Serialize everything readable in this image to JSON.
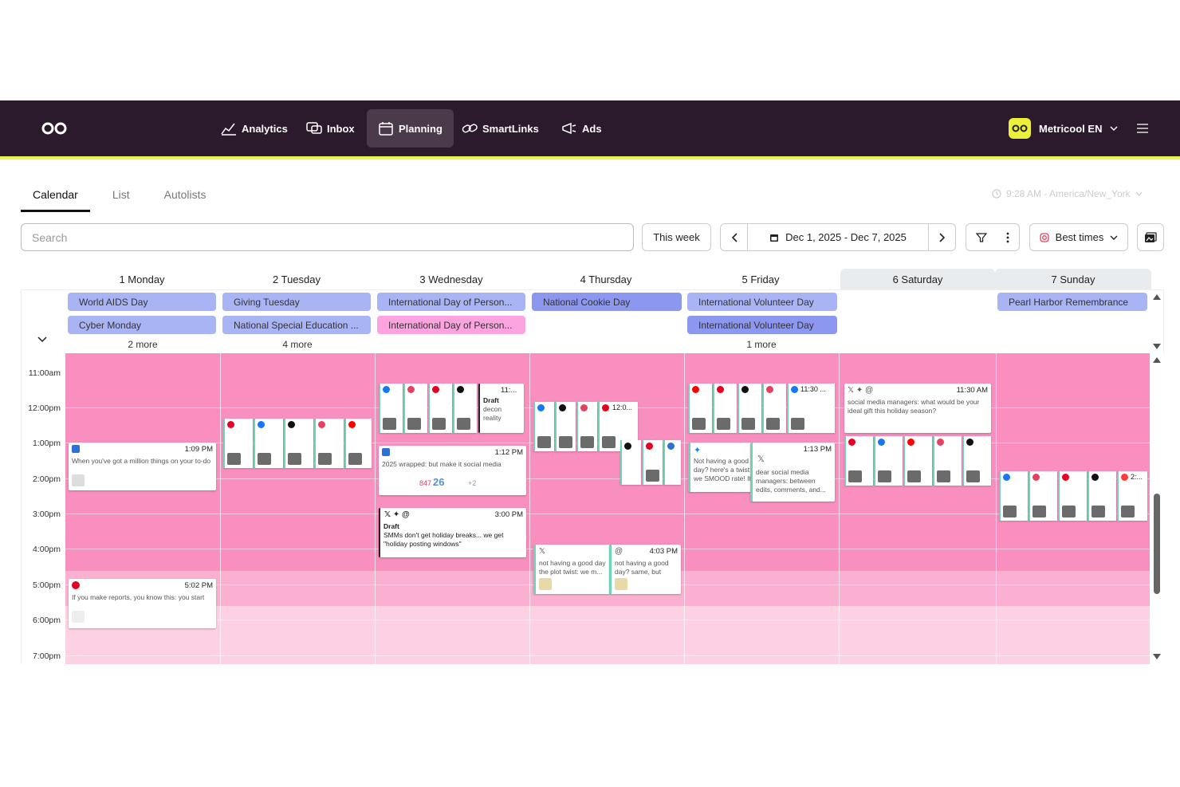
{
  "nav": {
    "items": [
      {
        "label": "Analytics"
      },
      {
        "label": "Inbox"
      },
      {
        "label": "Planning"
      },
      {
        "label": "SmartLinks"
      },
      {
        "label": "Ads"
      }
    ],
    "account": "Metricool EN"
  },
  "tabs": [
    "Calendar",
    "List",
    "Autolists"
  ],
  "timezone": "9:28 AM - America/New_York",
  "search": {
    "placeholder": "Search"
  },
  "toolbar": {
    "this_week": "This week",
    "date_range": "Dec 1, 2025 - Dec 7, 2025",
    "best_times": "Best times"
  },
  "days": [
    {
      "label": "1 Monday",
      "events": [
        "World AIDS Day",
        "Cyber Monday"
      ],
      "more": "2 more"
    },
    {
      "label": "2 Tuesday",
      "events": [
        "Giving Tuesday",
        "National Special Education ..."
      ],
      "more": "4 more"
    },
    {
      "label": "3 Wednesday",
      "events": [
        "International Day of Person...",
        "International Day of Person..."
      ],
      "more": ""
    },
    {
      "label": "4 Thursday",
      "events": [
        "National Cookie Day"
      ],
      "more": ""
    },
    {
      "label": "5 Friday",
      "events": [
        "International Volunteer Day",
        "International Volunteer Day"
      ],
      "more": "1 more"
    },
    {
      "label": "6 Saturday",
      "events": [],
      "more": ""
    },
    {
      "label": "7 Sunday",
      "events": [
        "Pearl Harbor Remembrance"
      ],
      "more": ""
    }
  ],
  "hours": [
    "11:00am",
    "12:00pm",
    "1:00pm",
    "2:00pm",
    "3:00pm",
    "4:00pm",
    "5:00pm",
    "6:00pm",
    "7:00pm"
  ],
  "posts": {
    "mon1": {
      "time": "1:09 PM",
      "text": "When you've got a million things on your to-do list, ALT text is usually the first..."
    },
    "mon2": {
      "time": "5:02 PM",
      "text": "If you make reports, you know this: you start \"quickly\"... and end up with 27 tabs"
    },
    "wed1": {
      "time": "1:12 PM",
      "text": "2025 wrapped: but make it social media marketer edition",
      "stat1": "847",
      "stat2": "26",
      "stat3": "+2"
    },
    "wed2": {
      "time": "3:00 PM",
      "status": "Draft",
      "text": "SMMs don't get holiday breaks... we get \"holiday posting windows\""
    },
    "thu1": {
      "time": "4:03 PM",
      "text": "not having a good day the plot twist: we m..."
    },
    "thu2": {
      "text": "not having a good day? same, but"
    },
    "fri1": {
      "time": "1:13 PM",
      "text": "Not having a good day? here's a twist: we SMOOD rate! It t..."
    },
    "fri2": {
      "text": "dear social media managers: between edits, comments, and..."
    },
    "fri_top": {
      "time": "11:30 ..."
    },
    "sat1": {
      "time": "11:30 AM",
      "text": "social media managers: what would be your ideal gift this holiday season?"
    },
    "sun_top": {
      "time": "2:..."
    },
    "wed_draft": {
      "time": "11:...",
      "status": "Draft",
      "text": "decon reality"
    },
    "thu_top": {
      "time": "12:0..."
    }
  },
  "colors": {
    "topbar": "#2b1a2b",
    "accent": "#e8f44a",
    "grid_pink": "#f98fbf",
    "chip_blue": "#a9b4f5",
    "chip_pink": "#fca3e0"
  }
}
